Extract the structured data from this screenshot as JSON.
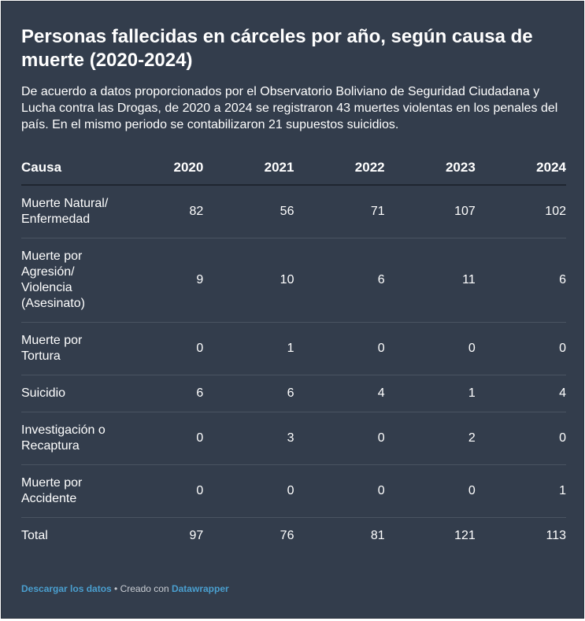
{
  "chart_data": {
    "type": "table",
    "title": "Personas fallecidas en cárceles por año, según causa de muerte (2020-2024)",
    "description": "De acuerdo a datos proporcionados por el Observatorio Boliviano de Seguridad Ciudadana y Lucha contra las Drogas, de 2020 a 2024 se registraron 43 muertes violentas en los penales del país. En el mismo periodo se contabilizaron 21 supuestos suicidios.",
    "columns": [
      "Causa",
      "2020",
      "2021",
      "2022",
      "2023",
      "2024"
    ],
    "rows": [
      {
        "label": "Muerte Natural/ Enfermedad",
        "values": [
          "82",
          "56",
          "71",
          "107",
          "102"
        ]
      },
      {
        "label": "Muerte por Agresión/ Violencia (Asesinato)",
        "values": [
          "9",
          "10",
          "6",
          "11",
          "6"
        ]
      },
      {
        "label": "Muerte por Tortura",
        "values": [
          "0",
          "1",
          "0",
          "0",
          "0"
        ]
      },
      {
        "label": "Suicidio",
        "values": [
          "6",
          "6",
          "4",
          "1",
          "4"
        ]
      },
      {
        "label": "Investigación o Recaptura",
        "values": [
          "0",
          "3",
          "0",
          "2",
          "0"
        ]
      },
      {
        "label": "Muerte por Accidente",
        "values": [
          "0",
          "0",
          "0",
          "0",
          "1"
        ]
      },
      {
        "label": "Total",
        "values": [
          "97",
          "76",
          "81",
          "121",
          "113"
        ]
      }
    ]
  },
  "footer": {
    "download_link": "Descargar los datos",
    "separator": " • Creado con ",
    "tool_link": "Datawrapper"
  },
  "colors": {
    "background": "#333d4c",
    "text": "#ffffff",
    "link": "#4a9fcf"
  }
}
